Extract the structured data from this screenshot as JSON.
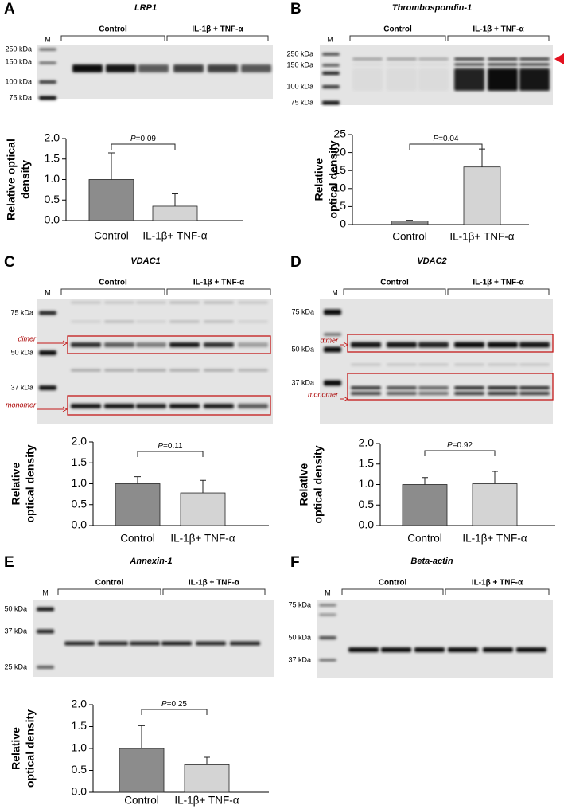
{
  "panels": [
    {
      "letter": "A",
      "title": "LRP1",
      "lane_marker": "M",
      "groups": [
        "Control",
        "IL-1β + TNF-α"
      ],
      "size_labels": [
        "250 kDa",
        "150 kDa",
        "100 kDa",
        "75 kDa"
      ]
    },
    {
      "letter": "B",
      "title": "Thrombospondin-1",
      "lane_marker": "M",
      "groups": [
        "Control",
        "IL-1β + TNF-α"
      ],
      "size_labels": [
        "250 kDa",
        "150 kDa",
        "100 kDa",
        "75 kDa"
      ]
    },
    {
      "letter": "C",
      "title": "VDAC1",
      "lane_marker": "M",
      "groups": [
        "Control",
        "IL-1β + TNF-α"
      ],
      "size_labels": [
        "75 kDa",
        "50 kDa",
        "37 kDa"
      ],
      "band_labels": [
        "dimer",
        "monomer"
      ]
    },
    {
      "letter": "D",
      "title": "VDAC2",
      "lane_marker": "M",
      "groups": [
        "Control",
        "IL-1β + TNF-α"
      ],
      "size_labels": [
        "75 kDa",
        "50 kDa",
        "37 kDa"
      ],
      "band_labels": [
        "dimer",
        "monomer"
      ]
    },
    {
      "letter": "E",
      "title": "Annexin-1",
      "lane_marker": "M",
      "groups": [
        "Control",
        "IL-1β + TNF-α"
      ],
      "size_labels": [
        "50 kDa",
        "37 kDa",
        "25 kDa"
      ]
    },
    {
      "letter": "F",
      "title": "Beta-actin",
      "lane_marker": "M",
      "groups": [
        "Control",
        "IL-1β + TNF-α"
      ],
      "size_labels": [
        "75 kDa",
        "50 kDa",
        "37 kDa"
      ]
    }
  ],
  "chart_data": [
    {
      "type": "bar",
      "ylabel": [
        "Relative optical",
        "density"
      ],
      "categories": [
        "Control",
        "IL-1β+ TNF-α"
      ],
      "values": [
        1.0,
        0.35
      ],
      "errors": [
        0.65,
        0.3
      ],
      "colors": [
        "#8c8c8c",
        "#d4d4d4"
      ],
      "ylim": [
        0,
        2
      ],
      "yticks": [
        {
          "value": 0,
          "label": "0.0"
        },
        {
          "value": 0.5,
          "label": "0.5"
        },
        {
          "value": 1,
          "label": "1.0"
        },
        {
          "value": 1.5,
          "label": "1.5"
        },
        {
          "value": 2,
          "label": "2.0"
        }
      ],
      "annotation": {
        "symbol": "P",
        "text": "=0.09"
      }
    },
    {
      "type": "bar",
      "ylabel": [
        "Relative",
        "optical density"
      ],
      "categories": [
        "Control",
        "IL-1β+ TNF-α"
      ],
      "values": [
        1.0,
        16
      ],
      "errors": [
        0.2,
        5
      ],
      "colors": [
        "#8c8c8c",
        "#d4d4d4"
      ],
      "ylim": [
        0,
        25
      ],
      "yticks": [
        0,
        5,
        10,
        15,
        20,
        25
      ],
      "annotation": {
        "symbol": "P",
        "text": "=0.04"
      }
    },
    {
      "type": "bar",
      "ylabel": [
        "Relative",
        "optical density"
      ],
      "categories": [
        "Control",
        "IL-1β+ TNF-α"
      ],
      "values": [
        1.0,
        0.78
      ],
      "errors": [
        0.17,
        0.3
      ],
      "colors": [
        "#8c8c8c",
        "#d4d4d4"
      ],
      "ylim": [
        0,
        2
      ],
      "yticks": [
        {
          "value": 0,
          "label": "0.0"
        },
        {
          "value": 0.5,
          "label": "0.5"
        },
        {
          "value": 1,
          "label": "1.0"
        },
        {
          "value": 1.5,
          "label": "1.5"
        },
        {
          "value": 2,
          "label": "2.0"
        }
      ],
      "annotation": {
        "symbol": "P",
        "text": "=0.11"
      }
    },
    {
      "type": "bar",
      "ylabel": [
        "Relative",
        "optical density"
      ],
      "categories": [
        "Control",
        "IL-1β+ TNF-α"
      ],
      "values": [
        1.0,
        1.02
      ],
      "errors": [
        0.17,
        0.3
      ],
      "colors": [
        "#8c8c8c",
        "#d4d4d4"
      ],
      "ylim": [
        0,
        2
      ],
      "yticks": [
        {
          "value": 0,
          "label": "0.0"
        },
        {
          "value": 0.5,
          "label": "0.5"
        },
        {
          "value": 1,
          "label": "1.0"
        },
        {
          "value": 1.5,
          "label": "1.5"
        },
        {
          "value": 2,
          "label": "2.0"
        }
      ],
      "annotation": {
        "symbol": "P",
        "text": "=0.92"
      }
    },
    {
      "type": "bar",
      "ylabel": [
        "Relative",
        "optical density"
      ],
      "categories": [
        "Control",
        "IL-1β+ TNF-α"
      ],
      "values": [
        1.0,
        0.63
      ],
      "errors": [
        0.52,
        0.17
      ],
      "colors": [
        "#8c8c8c",
        "#d4d4d4"
      ],
      "ylim": [
        0,
        2
      ],
      "yticks": [
        {
          "value": 0,
          "label": "0.0"
        },
        {
          "value": 0.5,
          "label": "0.5"
        },
        {
          "value": 1,
          "label": "1.0"
        },
        {
          "value": 1.5,
          "label": "1.5"
        },
        {
          "value": 2,
          "label": "2.0"
        }
      ],
      "annotation": {
        "symbol": "P",
        "text": "=0.25"
      }
    }
  ]
}
